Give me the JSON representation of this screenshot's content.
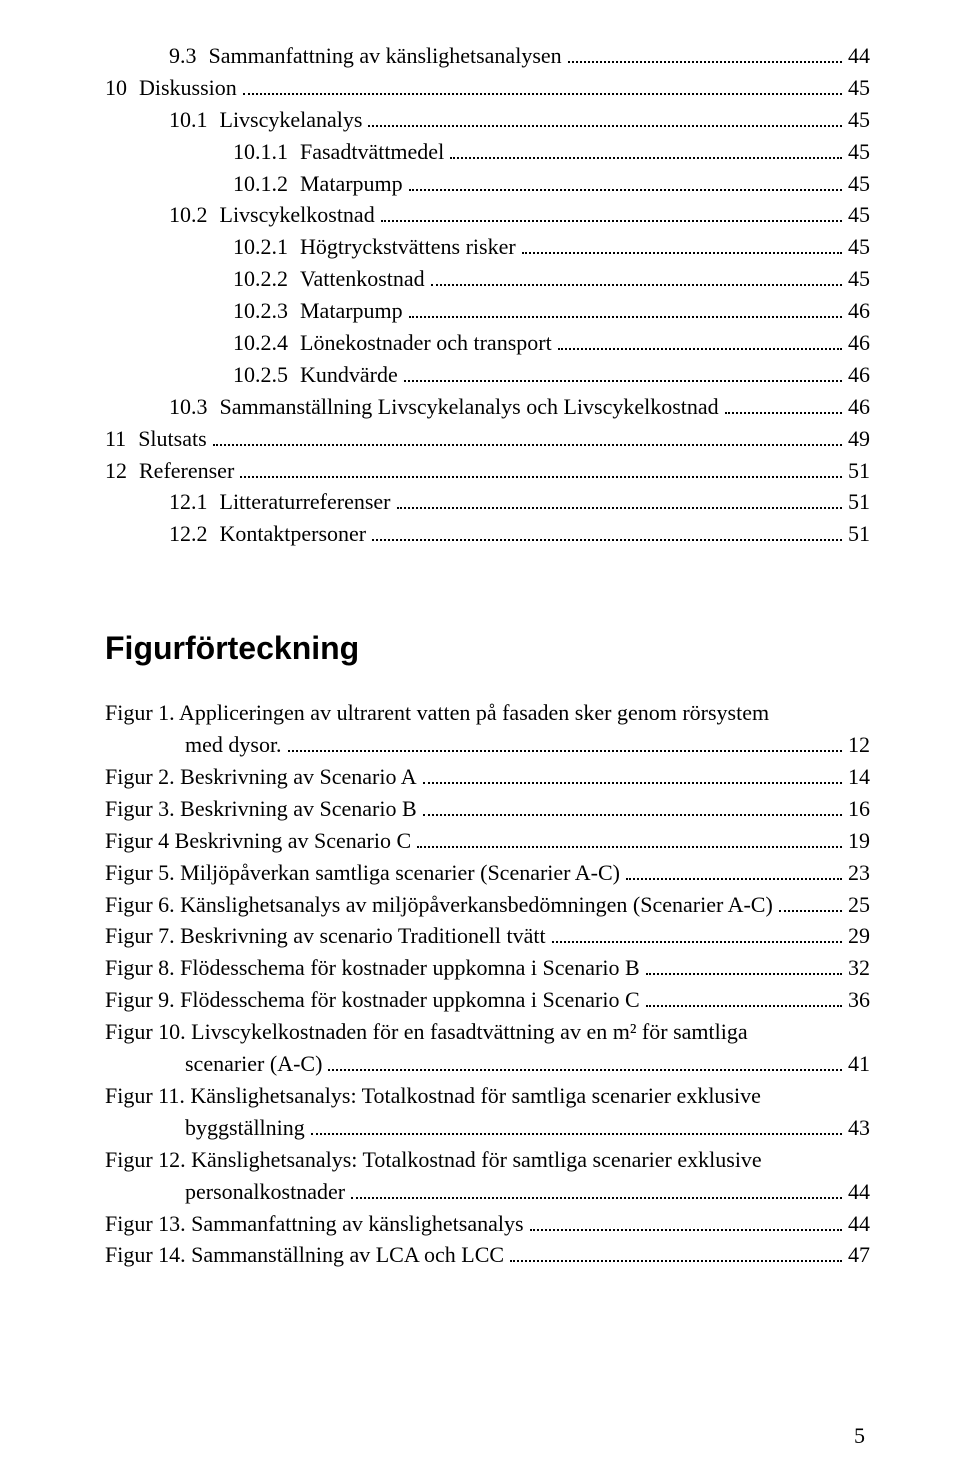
{
  "toc": [
    {
      "indent": 1,
      "num": "9.3",
      "label": "Sammanfattning av känslighetsanalysen",
      "page": "44"
    },
    {
      "indent": 0,
      "num": "10",
      "label": "Diskussion",
      "page": "45"
    },
    {
      "indent": 1,
      "num": "10.1",
      "label": "Livscykelanalys",
      "page": "45"
    },
    {
      "indent": 2,
      "num": "10.1.1",
      "label": "Fasadtvättmedel",
      "page": "45"
    },
    {
      "indent": 2,
      "num": "10.1.2",
      "label": "Matarpump",
      "page": "45"
    },
    {
      "indent": 1,
      "num": "10.2",
      "label": "Livscykelkostnad",
      "page": "45"
    },
    {
      "indent": 2,
      "num": "10.2.1",
      "label": "Högtryckstvättens risker",
      "page": "45"
    },
    {
      "indent": 2,
      "num": "10.2.2",
      "label": "Vattenkostnad",
      "page": "45"
    },
    {
      "indent": 2,
      "num": "10.2.3",
      "label": "Matarpump",
      "page": "46"
    },
    {
      "indent": 2,
      "num": "10.2.4",
      "label": "Lönekostnader och transport",
      "page": "46"
    },
    {
      "indent": 2,
      "num": "10.2.5",
      "label": "Kundvärde",
      "page": "46"
    },
    {
      "indent": 1,
      "num": "10.3",
      "label": "Sammanställning Livscykelanalys och Livscykelkostnad",
      "page": "46"
    },
    {
      "indent": 0,
      "num": "11",
      "label": "Slutsats",
      "page": "49"
    },
    {
      "indent": 0,
      "num": "12",
      "label": "Referenser",
      "page": "51"
    },
    {
      "indent": 1,
      "num": "12.1",
      "label": "Litteraturreferenser",
      "page": "51"
    },
    {
      "indent": 1,
      "num": "12.2",
      "label": "Kontaktpersoner",
      "page": "51"
    }
  ],
  "figHeading": "Figurförteckning",
  "figures": [
    {
      "lines": [
        "Figur 1. Appliceringen av ultrarent vatten på fasaden sker genom rörsystem",
        "med dysor."
      ],
      "page": "12",
      "cont": true
    },
    {
      "lines": [
        "Figur 2. Beskrivning av Scenario A"
      ],
      "page": "14"
    },
    {
      "lines": [
        "Figur 3. Beskrivning av Scenario B"
      ],
      "page": "16"
    },
    {
      "lines": [
        "Figur 4 Beskrivning av Scenario C"
      ],
      "page": "19"
    },
    {
      "lines": [
        "Figur 5. Miljöpåverkan samtliga scenarier (Scenarier A-C)"
      ],
      "page": "23"
    },
    {
      "lines": [
        "Figur 6. Känslighetsanalys av miljöpåverkansbedömningen (Scenarier A-C)"
      ],
      "page": "25"
    },
    {
      "lines": [
        "Figur 7. Beskrivning av scenario Traditionell tvätt"
      ],
      "page": "29"
    },
    {
      "lines": [
        "Figur 8. Flödesschema för kostnader uppkomna i Scenario B"
      ],
      "page": "32"
    },
    {
      "lines": [
        "Figur 9. Flödesschema för kostnader uppkomna i Scenario C"
      ],
      "page": "36"
    },
    {
      "lines": [
        "Figur 10. Livscykelkostnaden för en fasadtvättning av en m² för samtliga",
        "scenarier (A-C)"
      ],
      "page": "41",
      "cont": true
    },
    {
      "lines": [
        "Figur 11. Känslighetsanalys: Totalkostnad för samtliga scenarier exklusive",
        "byggställning"
      ],
      "page": "43",
      "cont": true
    },
    {
      "lines": [
        "Figur 12. Känslighetsanalys: Totalkostnad för samtliga scenarier exklusive",
        "personalkostnader"
      ],
      "page": "44",
      "cont": true
    },
    {
      "lines": [
        "Figur 13. Sammanfattning av känslighetsanalys"
      ],
      "page": "44"
    },
    {
      "lines": [
        "Figur 14. Sammanställning av LCA och LCC"
      ],
      "page": "47"
    }
  ],
  "pageNumber": "5"
}
